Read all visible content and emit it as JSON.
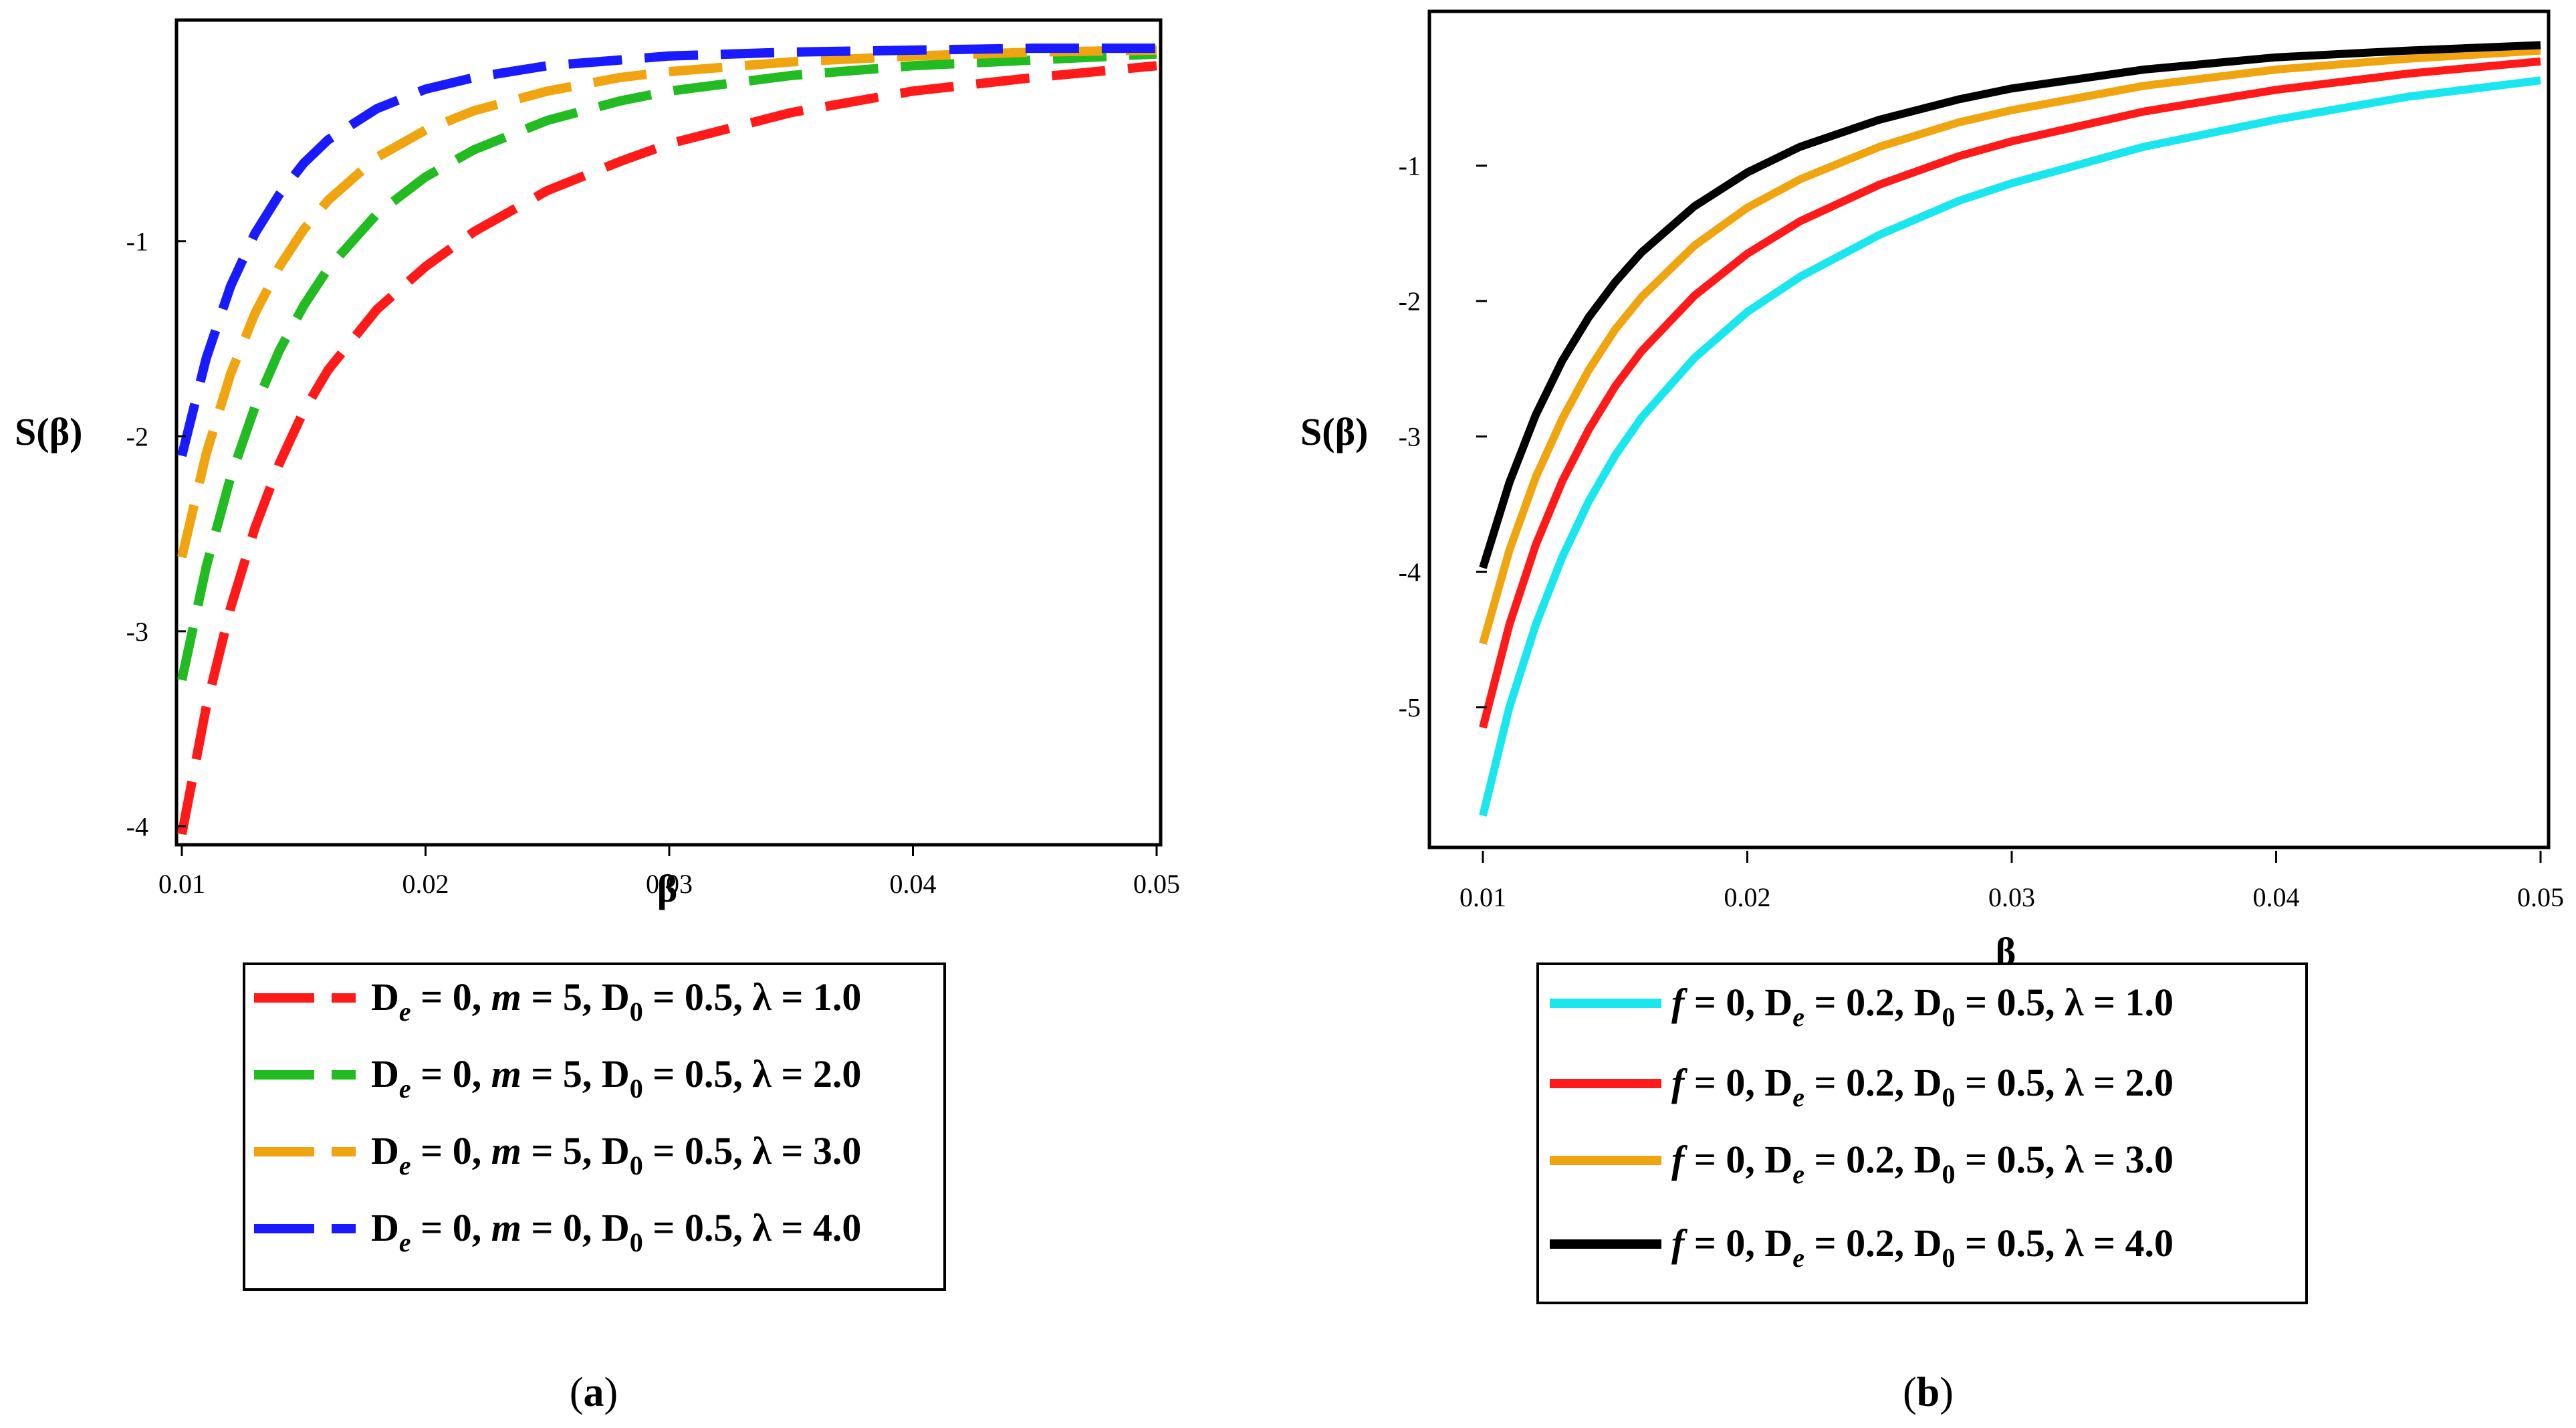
{
  "chart_data": [
    {
      "panel": "a",
      "caption": "(a)",
      "caption_letter": "a",
      "type": "line",
      "line_style": "dashed",
      "xlabel": "β",
      "ylabel": "S(β)",
      "xlim": [
        0.01,
        0.05
      ],
      "ylim": [
        -4.05,
        0.1
      ],
      "xticks": [
        0.01,
        0.02,
        0.03,
        0.04,
        0.05
      ],
      "xtick_labels": [
        "0.01",
        "0.02",
        "0.03",
        "0.04",
        "0.05"
      ],
      "yticks": [
        -1,
        -2,
        -3,
        -4
      ],
      "ytick_labels": [
        "-1",
        "-2",
        "-3",
        "-4"
      ],
      "legend_position": "below",
      "series": [
        {
          "name": "De = 0, m = 5, D0 = 0.5, λ = 1.0",
          "color": "#ff1a1a",
          "legend": {
            "D": "D",
            "De_sub": "e",
            "De_val": " = 0, ",
            "m": "m",
            "m_val": " = 5, D",
            "D0_sub": "0",
            "rest": " = 0.5, λ = 1.0"
          },
          "x": [
            0.01,
            0.011,
            0.012,
            0.013,
            0.014,
            0.015,
            0.016,
            0.018,
            0.02,
            0.022,
            0.025,
            0.028,
            0.03,
            0.035,
            0.04,
            0.045,
            0.05
          ],
          "y": [
            -4.04,
            -3.39,
            -2.88,
            -2.47,
            -2.14,
            -1.87,
            -1.66,
            -1.35,
            -1.13,
            -0.95,
            -0.74,
            -0.59,
            -0.5,
            -0.34,
            -0.23,
            -0.16,
            -0.1
          ]
        },
        {
          "name": "De = 0, m = 5, D0 = 0.5, λ = 2.0",
          "color": "#22bb22",
          "legend": {
            "D": "D",
            "De_sub": "e",
            "De_val": " = 0, ",
            "m": "m",
            "m_val": " = 5, D",
            "D0_sub": "0",
            "rest": " = 0.5, λ = 2.0"
          },
          "x": [
            0.01,
            0.011,
            0.012,
            0.013,
            0.014,
            0.015,
            0.016,
            0.018,
            0.02,
            0.022,
            0.025,
            0.028,
            0.03,
            0.035,
            0.04,
            0.045,
            0.05
          ],
          "y": [
            -3.25,
            -2.67,
            -2.21,
            -1.85,
            -1.56,
            -1.33,
            -1.14,
            -0.86,
            -0.67,
            -0.53,
            -0.38,
            -0.28,
            -0.23,
            -0.15,
            -0.1,
            -0.07,
            -0.04
          ]
        },
        {
          "name": "De = 0, m = 5, D0 = 0.5, λ = 3.0",
          "color": "#f0a510",
          "legend": {
            "D": "D",
            "De_sub": "e",
            "De_val": " = 0, ",
            "m": "m",
            "m_val": " = 5, D",
            "D0_sub": "0",
            "rest": " = 0.5, λ = 3.0"
          },
          "x": [
            0.01,
            0.011,
            0.012,
            0.013,
            0.014,
            0.015,
            0.016,
            0.018,
            0.02,
            0.022,
            0.025,
            0.028,
            0.03,
            0.035,
            0.04,
            0.045,
            0.05
          ],
          "y": [
            -2.62,
            -2.09,
            -1.68,
            -1.37,
            -1.13,
            -0.94,
            -0.79,
            -0.57,
            -0.43,
            -0.33,
            -0.23,
            -0.16,
            -0.13,
            -0.08,
            -0.05,
            -0.03,
            -0.02
          ]
        },
        {
          "name": "De = 0, m = 0, D0 = 0.5, λ = 4.0",
          "color": "#1a1aff",
          "legend": {
            "D": "D",
            "De_sub": "e",
            "De_val": " = 0, ",
            "m": "m",
            "m_val": " = 0, D",
            "D0_sub": "0",
            "rest": " = 0.5, λ = 4.0"
          },
          "x": [
            0.01,
            0.011,
            0.012,
            0.013,
            0.014,
            0.015,
            0.016,
            0.018,
            0.02,
            0.022,
            0.025,
            0.028,
            0.03,
            0.035,
            0.04,
            0.045,
            0.05
          ],
          "y": [
            -2.1,
            -1.6,
            -1.23,
            -0.96,
            -0.76,
            -0.6,
            -0.48,
            -0.32,
            -0.22,
            -0.16,
            -0.1,
            -0.07,
            -0.05,
            -0.03,
            -0.02,
            -0.01,
            -0.01
          ]
        }
      ]
    },
    {
      "panel": "b",
      "caption": "(b)",
      "caption_letter": "b",
      "type": "line",
      "line_style": "solid",
      "xlabel": "β",
      "ylabel": "S(β)",
      "xlim": [
        0.01,
        0.05
      ],
      "ylim": [
        -6.0,
        0.1
      ],
      "xticks": [
        0.01,
        0.02,
        0.03,
        0.04,
        0.05
      ],
      "xtick_labels": [
        "0.01",
        "0.02",
        "0.03",
        "0.04",
        "0.05"
      ],
      "yticks": [
        -1,
        -2,
        -3,
        -4,
        -5
      ],
      "ytick_labels": [
        "-1",
        "-2",
        "-3",
        "-4",
        "-5"
      ],
      "legend_position": "below",
      "series": [
        {
          "name": "f = 0, De = 0.2, D0 = 0.5, λ = 1.0",
          "color": "#1ae6f0",
          "legend": {
            "f": "f",
            "f_val": " = 0, D",
            "De_sub": "e",
            "De_val": " = 0.2,  D",
            "D0_sub": "0",
            "rest": " = 0.5, λ = 1.0"
          },
          "x": [
            0.01,
            0.011,
            0.012,
            0.013,
            0.014,
            0.015,
            0.016,
            0.018,
            0.02,
            0.022,
            0.025,
            0.028,
            0.03,
            0.035,
            0.04,
            0.045,
            0.05
          ],
          "y": [
            -5.8,
            -5.0,
            -4.39,
            -3.89,
            -3.48,
            -3.14,
            -2.86,
            -2.42,
            -2.08,
            -1.82,
            -1.51,
            -1.26,
            -1.13,
            -0.86,
            -0.66,
            -0.49,
            -0.37
          ]
        },
        {
          "name": "f = 0, De = 0.2, D0 = 0.5, λ = 2.0",
          "color": "#ff1a1a",
          "legend": {
            "f": "f",
            "f_val": " = 0, D",
            "De_sub": "e",
            "De_val": " = 0.2,  D",
            "D0_sub": "0",
            "rest": " = 0.5, λ = 2.0"
          },
          "x": [
            0.01,
            0.011,
            0.012,
            0.013,
            0.014,
            0.015,
            0.016,
            0.018,
            0.02,
            0.022,
            0.025,
            0.028,
            0.03,
            0.035,
            0.04,
            0.045,
            0.05
          ],
          "y": [
            -5.15,
            -4.39,
            -3.8,
            -3.33,
            -2.95,
            -2.63,
            -2.37,
            -1.96,
            -1.65,
            -1.41,
            -1.14,
            -0.93,
            -0.82,
            -0.6,
            -0.44,
            -0.32,
            -0.23
          ]
        },
        {
          "name": "f = 0, De = 0.2, D0 = 0.5, λ = 3.0",
          "color": "#f0a510",
          "legend": {
            "f": "f",
            "f_val": " = 0, D",
            "De_sub": "e",
            "De_val": " = 0.2,  D",
            "D0_sub": "0",
            "rest": " = 0.5, λ = 3.0"
          },
          "x": [
            0.01,
            0.011,
            0.012,
            0.013,
            0.014,
            0.015,
            0.016,
            0.018,
            0.02,
            0.022,
            0.025,
            0.028,
            0.03,
            0.035,
            0.04,
            0.045,
            0.05
          ],
          "y": [
            -4.53,
            -3.84,
            -3.3,
            -2.87,
            -2.51,
            -2.21,
            -1.97,
            -1.59,
            -1.31,
            -1.1,
            -0.86,
            -0.68,
            -0.59,
            -0.41,
            -0.29,
            -0.21,
            -0.15
          ]
        },
        {
          "name": "f = 0, De = 0.2, D0 = 0.5, λ = 4.0",
          "color": "#000000",
          "legend": {
            "f": "f",
            "f_val": " = 0, D",
            "De_sub": "e",
            "De_val": " = 0.2,  D",
            "D0_sub": "0",
            "rest": " = 0.5, λ = 4.0"
          },
          "x": [
            0.01,
            0.011,
            0.012,
            0.013,
            0.014,
            0.015,
            0.016,
            0.018,
            0.02,
            0.022,
            0.025,
            0.028,
            0.03,
            0.035,
            0.04,
            0.045,
            0.05
          ],
          "y": [
            -3.97,
            -3.34,
            -2.84,
            -2.44,
            -2.12,
            -1.86,
            -1.64,
            -1.3,
            -1.05,
            -0.86,
            -0.66,
            -0.51,
            -0.43,
            -0.29,
            -0.2,
            -0.15,
            -0.11
          ]
        }
      ]
    }
  ]
}
